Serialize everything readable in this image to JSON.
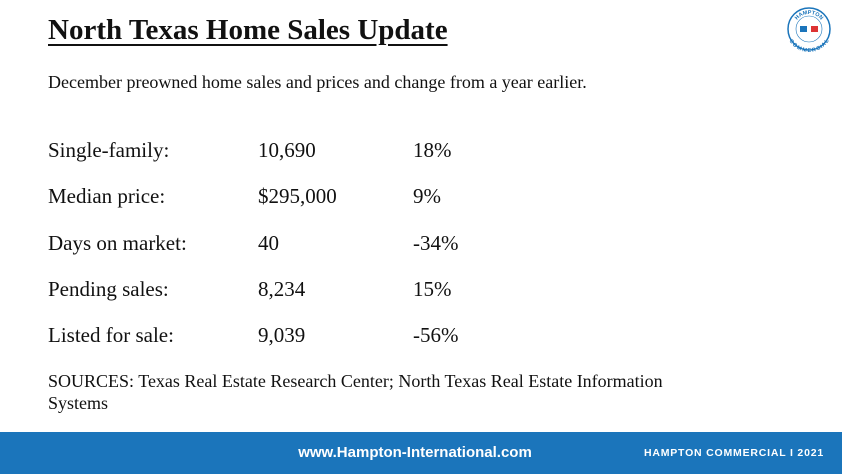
{
  "header": {
    "title": "North Texas Home Sales Update",
    "subtitle": "December preowned home sales and prices and change from a year earlier."
  },
  "logo": {
    "top": "HAMPTON",
    "bottom": "COMMERCIAL"
  },
  "table": {
    "rows": [
      [
        "Single-family:",
        "10,690",
        "18%"
      ],
      [
        "Median price:",
        "$295,000",
        "9%"
      ],
      [
        "Days on market:",
        "40",
        "-34%"
      ],
      [
        "Pending sales:",
        "8,234",
        "15%"
      ],
      [
        "Listed for sale:",
        "9,039",
        "-56%"
      ]
    ]
  },
  "sources": "SOURCES: Texas Real Estate Research Center; North Texas Real Estate Information Systems",
  "footer": {
    "url": "www.Hampton-International.com",
    "brand": "HAMPTON COMMERCIAL I 2021"
  }
}
